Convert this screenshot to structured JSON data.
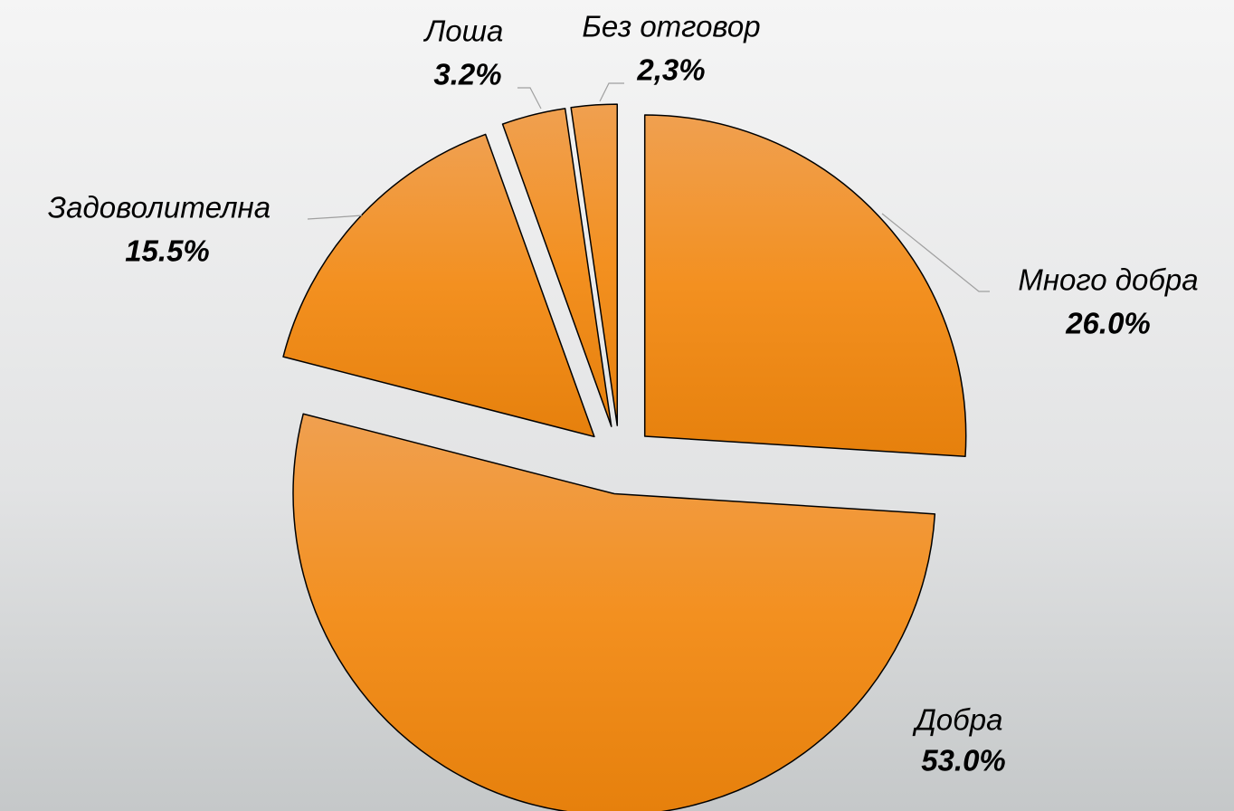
{
  "chart_data": {
    "type": "pie",
    "categories": [
      "Много добра",
      "Добра",
      "Задоволителна",
      "Лоша",
      "Без отговор"
    ],
    "values": [
      26.0,
      53.0,
      15.5,
      3.2,
      2.3
    ],
    "value_labels": [
      "26.0%",
      "53.0%",
      "15.5%",
      "3.2%",
      "2,3%"
    ],
    "color": "#f39020",
    "start_angle": "top",
    "direction": "clockwise",
    "exploded": true
  }
}
